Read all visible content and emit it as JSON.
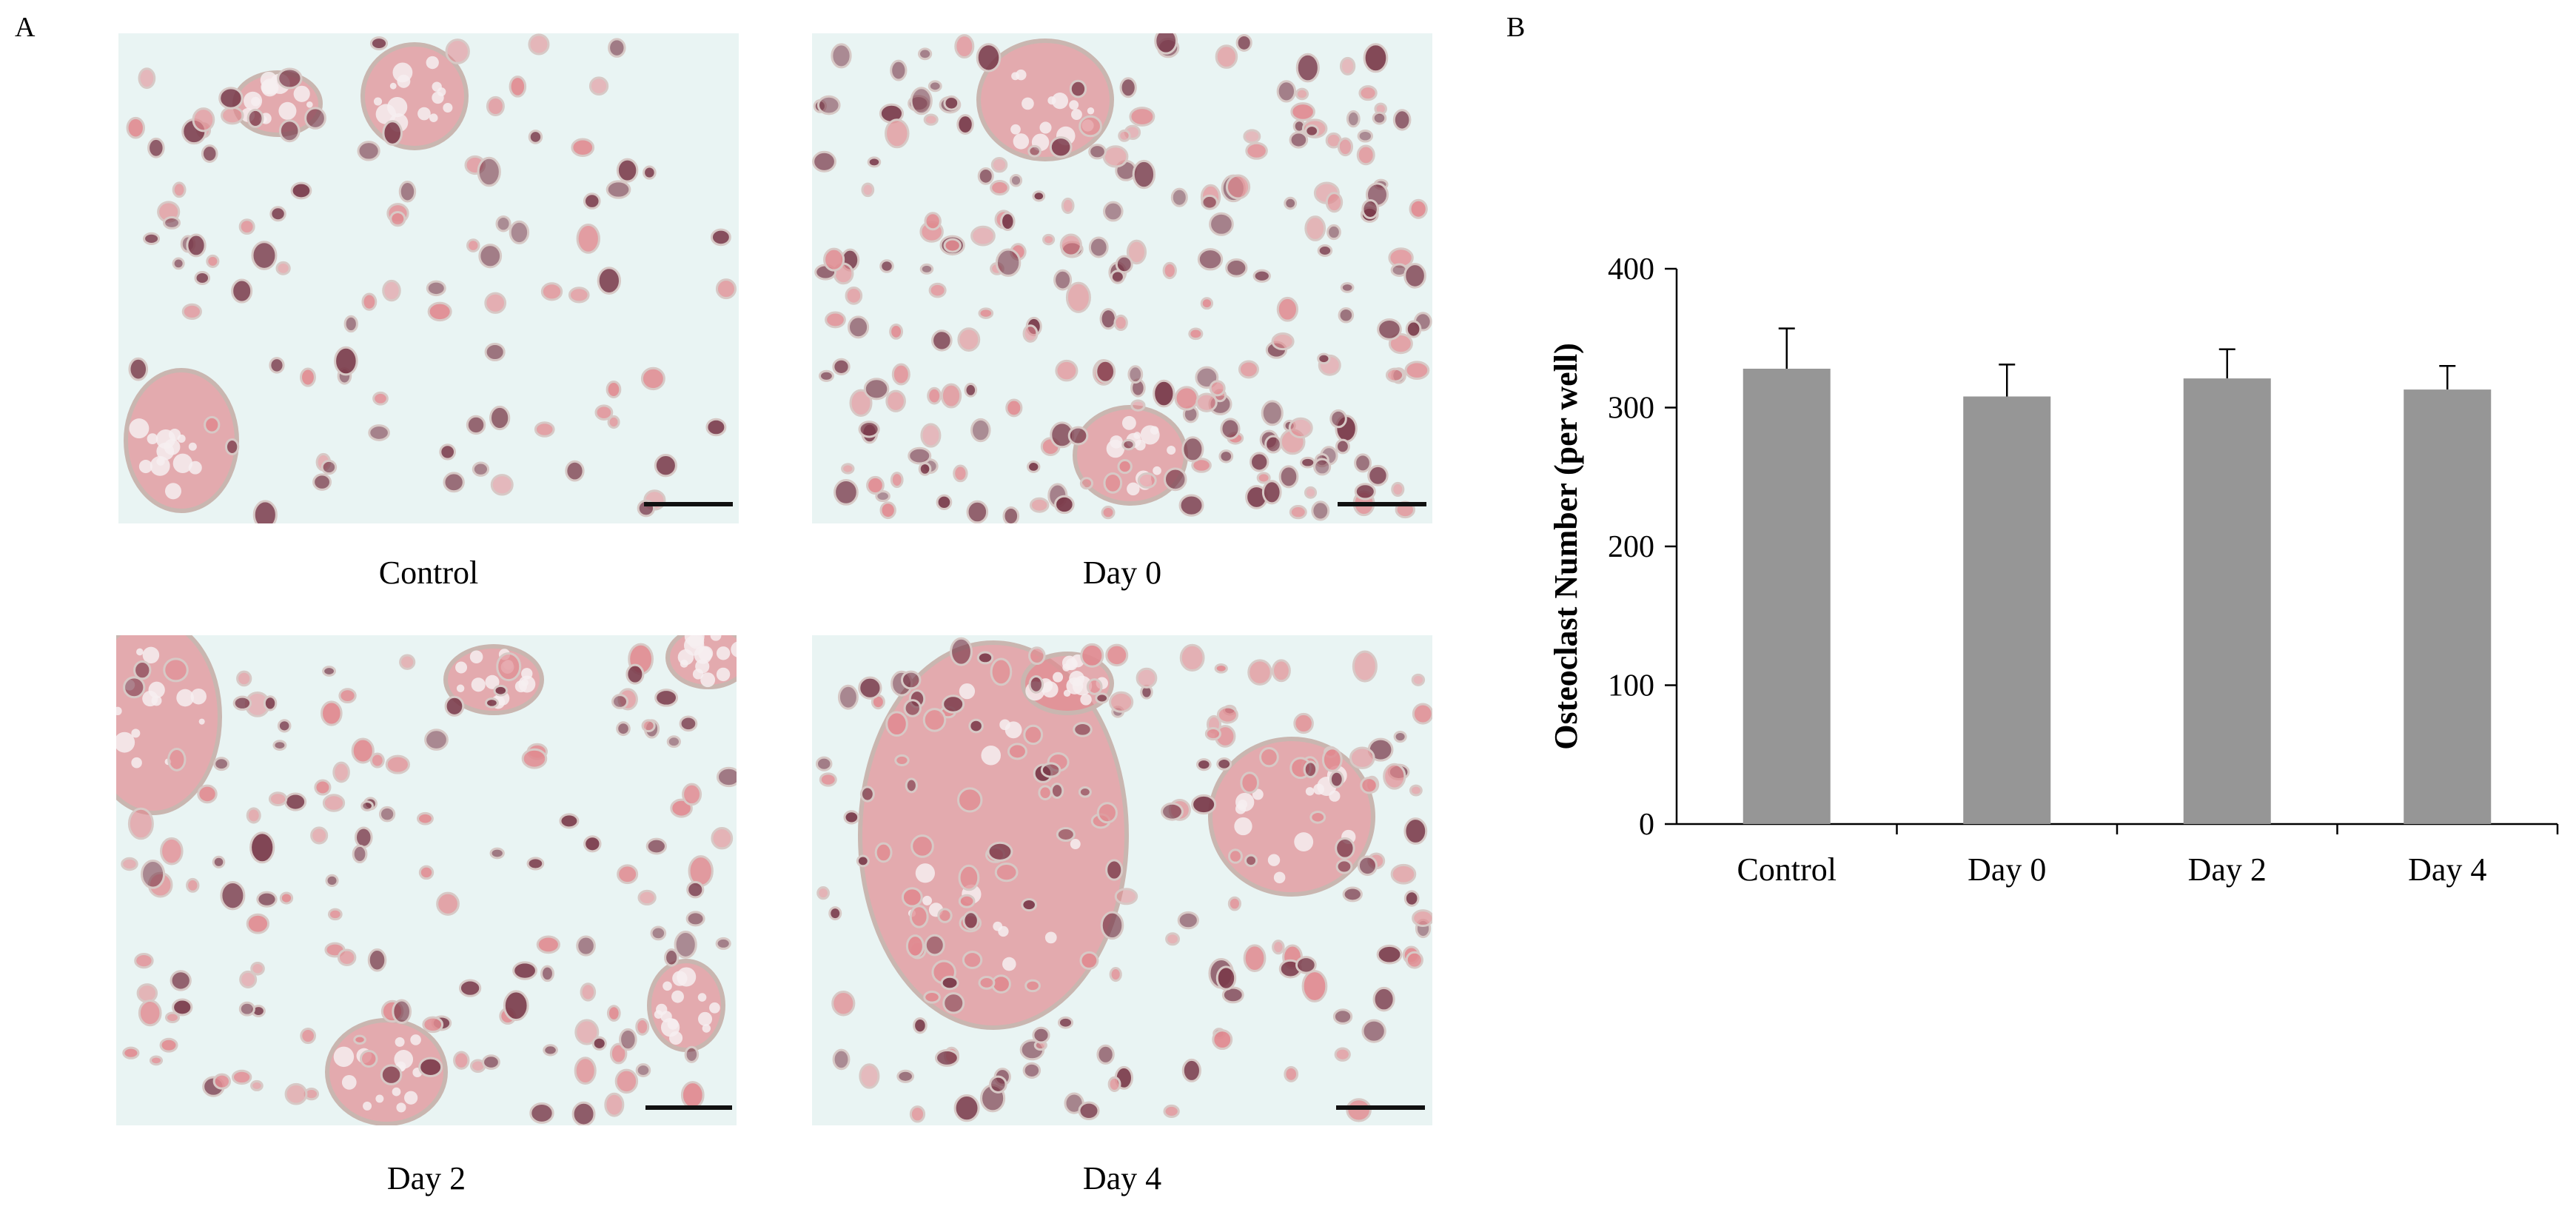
{
  "panels": {
    "a_label": "A",
    "b_label": "B",
    "images": [
      {
        "caption": "Control"
      },
      {
        "caption": "Day 0"
      },
      {
        "caption": "Day 2"
      },
      {
        "caption": "Day 4"
      }
    ]
  },
  "colors": {
    "background": "#e9f4f3",
    "stain_pink": "#e08a90",
    "stain_dark": "#7a3a4a",
    "bar_fill": "#969696",
    "scale_bar": "#111111"
  },
  "chart_data": {
    "type": "bar",
    "title": "",
    "xlabel": "",
    "ylabel": "Osteoclast Number (per well)",
    "categories": [
      "Control",
      "Day 0",
      "Day 2",
      "Day 4"
    ],
    "values": [
      328,
      308,
      321,
      313
    ],
    "errors": [
      29,
      23,
      21,
      17
    ],
    "ylim": [
      0,
      400
    ],
    "yticks": [
      0,
      100,
      200,
      300,
      400
    ],
    "grid": false,
    "legend": "none"
  }
}
